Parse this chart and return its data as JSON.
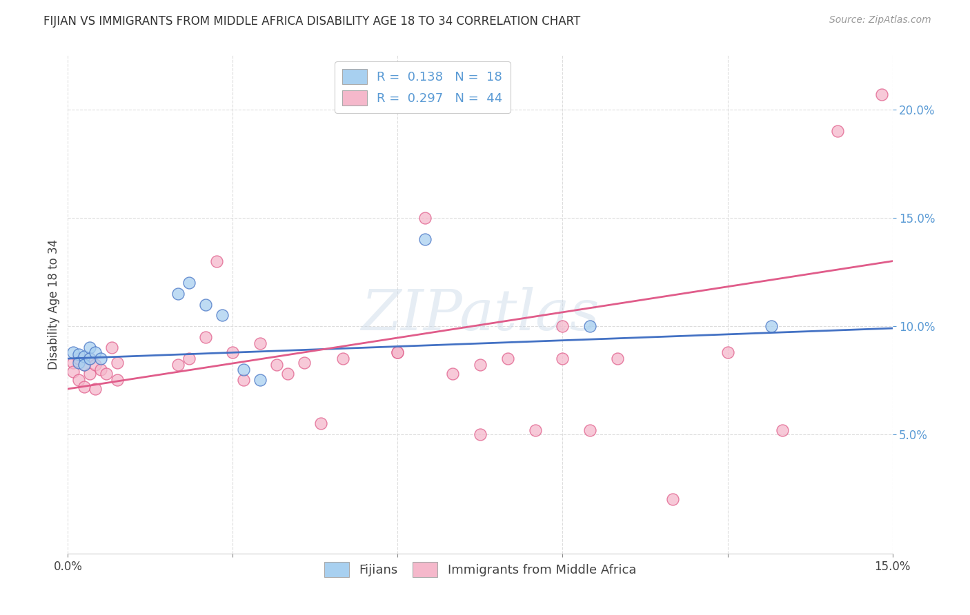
{
  "title": "FIJIAN VS IMMIGRANTS FROM MIDDLE AFRICA DISABILITY AGE 18 TO 34 CORRELATION CHART",
  "source": "Source: ZipAtlas.com",
  "ylabel": "Disability Age 18 to 34",
  "xlim": [
    0.0,
    0.15
  ],
  "ylim": [
    -0.005,
    0.225
  ],
  "x_tick_positions": [
    0.0,
    0.03,
    0.06,
    0.09,
    0.12,
    0.15
  ],
  "x_tick_labels": [
    "0.0%",
    "",
    "",
    "",
    "",
    "15.0%"
  ],
  "y_tick_positions": [
    0.05,
    0.1,
    0.15,
    0.2
  ],
  "y_tick_labels": [
    "5.0%",
    "10.0%",
    "15.0%",
    "20.0%"
  ],
  "legend_label1": "R =  0.138   N =  18",
  "legend_label2": "R =  0.297   N =  44",
  "legend_item1": "Fijians",
  "legend_item2": "Immigrants from Middle Africa",
  "color_fijian": "#a8d0f0",
  "color_immigrant": "#f5b8cb",
  "line_color_fijian": "#4472c4",
  "line_color_immigrant": "#e05c8a",
  "watermark": "ZIPatlas",
  "background_color": "#ffffff",
  "grid_color": "#dddddd",
  "fijian_x": [
    0.001,
    0.002,
    0.002,
    0.003,
    0.003,
    0.004,
    0.004,
    0.005,
    0.006,
    0.02,
    0.022,
    0.025,
    0.028,
    0.032,
    0.035,
    0.065,
    0.095,
    0.128
  ],
  "fijian_y": [
    0.088,
    0.087,
    0.083,
    0.086,
    0.082,
    0.09,
    0.085,
    0.088,
    0.085,
    0.115,
    0.12,
    0.11,
    0.105,
    0.08,
    0.075,
    0.14,
    0.1,
    0.1
  ],
  "immigrant_x": [
    0.001,
    0.001,
    0.002,
    0.002,
    0.003,
    0.003,
    0.004,
    0.004,
    0.005,
    0.005,
    0.006,
    0.007,
    0.008,
    0.009,
    0.009,
    0.02,
    0.022,
    0.025,
    0.027,
    0.03,
    0.032,
    0.035,
    0.038,
    0.04,
    0.043,
    0.046,
    0.05,
    0.06,
    0.065,
    0.07,
    0.075,
    0.08,
    0.085,
    0.09,
    0.095,
    0.1,
    0.11,
    0.12,
    0.13,
    0.14,
    0.06,
    0.075,
    0.09,
    0.148
  ],
  "immigrant_y": [
    0.083,
    0.079,
    0.085,
    0.075,
    0.082,
    0.072,
    0.085,
    0.078,
    0.082,
    0.071,
    0.08,
    0.078,
    0.09,
    0.083,
    0.075,
    0.082,
    0.085,
    0.095,
    0.13,
    0.088,
    0.075,
    0.092,
    0.082,
    0.078,
    0.083,
    0.055,
    0.085,
    0.088,
    0.15,
    0.078,
    0.082,
    0.085,
    0.052,
    0.1,
    0.052,
    0.085,
    0.02,
    0.088,
    0.052,
    0.19,
    0.088,
    0.05,
    0.085,
    0.207
  ],
  "line_fij_x0": 0.0,
  "line_fij_y0": 0.085,
  "line_fij_x1": 0.15,
  "line_fij_y1": 0.099,
  "line_imm_x0": 0.0,
  "line_imm_y0": 0.071,
  "line_imm_x1": 0.15,
  "line_imm_y1": 0.13
}
